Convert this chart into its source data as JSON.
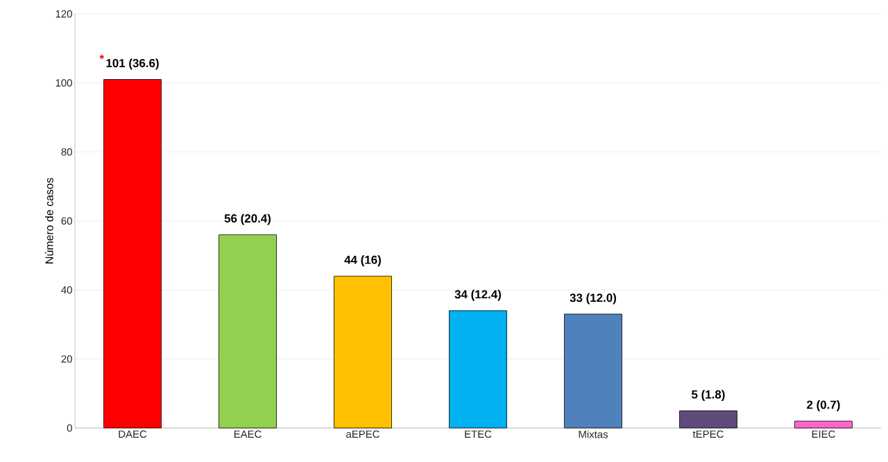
{
  "chart_data": {
    "type": "bar",
    "ylabel": "Número de casos",
    "categories": [
      "DAEC",
      "EAEC",
      "aEPEC",
      "ETEC",
      "Mixtas",
      "tEPEC",
      "EIEC"
    ],
    "values": [
      101,
      56,
      44,
      34,
      33,
      5,
      2
    ],
    "colors": [
      "#ff0000",
      "#92d050",
      "#ffc000",
      "#00b0f0",
      "#4f81bd",
      "#604a7b",
      "#ff66cc"
    ],
    "value_labels": [
      "101 (36.6)",
      "56 (20.4)",
      "44 (16)",
      "34 (12.4)",
      "33 (12.0)",
      "5 (1.8)",
      "2 (0.7)"
    ],
    "annotations": [
      {
        "text": "*",
        "x": "DAEC",
        "y": 101
      }
    ],
    "ylim": [
      0,
      120
    ],
    "yticks": [
      0,
      20,
      40,
      60,
      80,
      100,
      120
    ],
    "grid": "y"
  }
}
